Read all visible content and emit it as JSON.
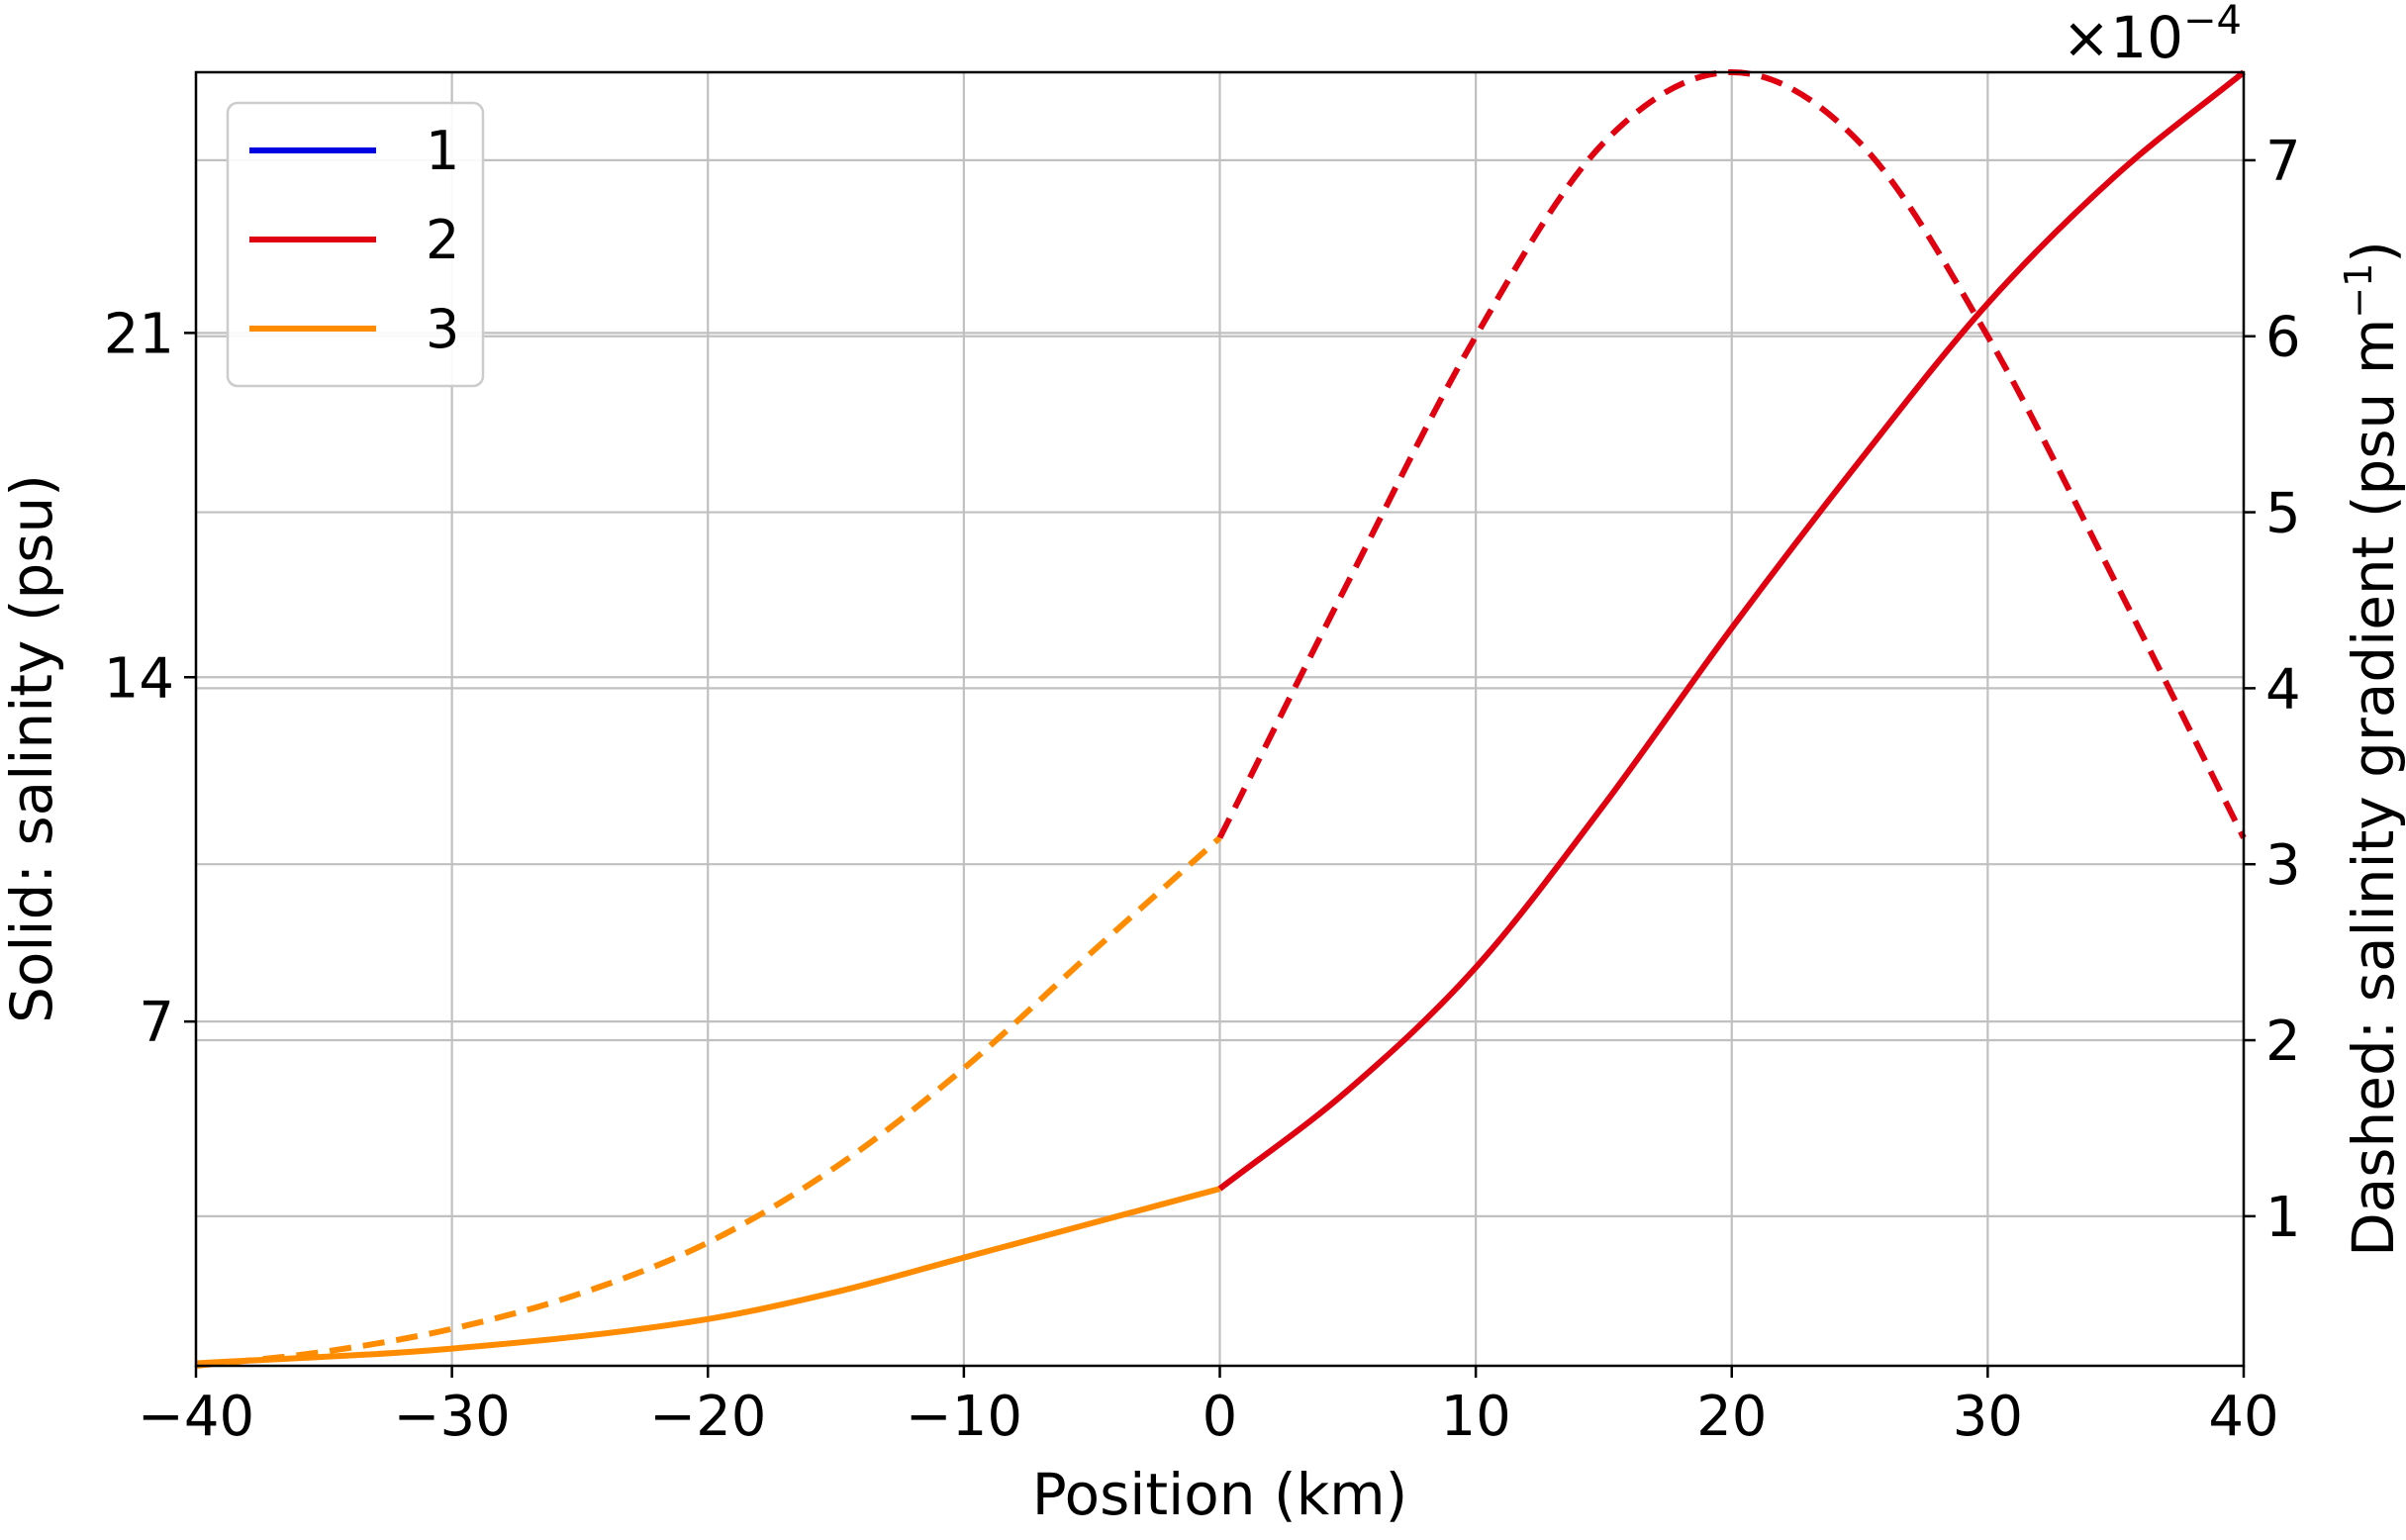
{
  "chart_data": {
    "type": "line",
    "xlabel": "Position (km)",
    "ylabel_left": "Solid: salinity (psu)",
    "ylabel_right_prefix": "Dashed: salinity gradient (psu m",
    "ylabel_right_sup": "−1",
    "ylabel_right_suffix": ")",
    "right_axis_offset": "×10",
    "right_axis_offset_exp": "−4",
    "xlim": [
      -40,
      40
    ],
    "ylim_left": [
      0,
      26.3
    ],
    "ylim_right": [
      0.15,
      7.5
    ],
    "xticks": [
      -40,
      -30,
      -20,
      -10,
      0,
      10,
      20,
      30,
      40
    ],
    "xtick_labels": [
      "−40",
      "−30",
      "−20",
      "−10",
      "0",
      "10",
      "20",
      "30",
      "40"
    ],
    "yticks_left": [
      7,
      14,
      21
    ],
    "yticks_left_labels": [
      "7",
      "14",
      "21"
    ],
    "yticks_right": [
      1,
      2,
      3,
      4,
      5,
      6,
      7
    ],
    "yticks_right_labels": [
      "1",
      "2",
      "3",
      "4",
      "5",
      "6",
      "7"
    ],
    "grid": true,
    "legend_position": "top-left",
    "legend": [
      {
        "label": "1",
        "color": "#0000e0"
      },
      {
        "label": "2",
        "color": "#e0000f"
      },
      {
        "label": "3",
        "color": "#ff8c00"
      }
    ],
    "series": [
      {
        "name": "3",
        "axis": "left",
        "style": "solid",
        "color": "#ff8c00",
        "x": [
          -40,
          -30,
          -20,
          -15,
          -10,
          -5,
          0
        ],
        "y": [
          0.05,
          0.35,
          0.95,
          1.5,
          2.2,
          2.9,
          3.6
        ]
      },
      {
        "name": "2",
        "axis": "left",
        "style": "solid",
        "color": "#e0000f",
        "x": [
          0,
          5,
          10,
          15,
          20,
          25,
          30,
          35,
          40
        ],
        "y": [
          3.6,
          5.6,
          8.1,
          11.4,
          15.0,
          18.4,
          21.6,
          24.2,
          26.3
        ]
      },
      {
        "name": "3",
        "axis": "right",
        "style": "dashed",
        "color": "#ff8c00",
        "x": [
          -40,
          -35,
          -30,
          -25,
          -20,
          -15,
          -10,
          -5,
          0
        ],
        "y": [
          0.15,
          0.23,
          0.36,
          0.56,
          0.85,
          1.28,
          1.84,
          2.5,
          3.15
        ]
      },
      {
        "name": "2",
        "axis": "right",
        "style": "dashed",
        "color": "#e0000f",
        "x": [
          0,
          5,
          10,
          15,
          20,
          25,
          30,
          35,
          40
        ],
        "y": [
          3.15,
          4.6,
          6.0,
          7.1,
          7.5,
          7.1,
          6.0,
          4.6,
          3.15
        ]
      }
    ]
  }
}
